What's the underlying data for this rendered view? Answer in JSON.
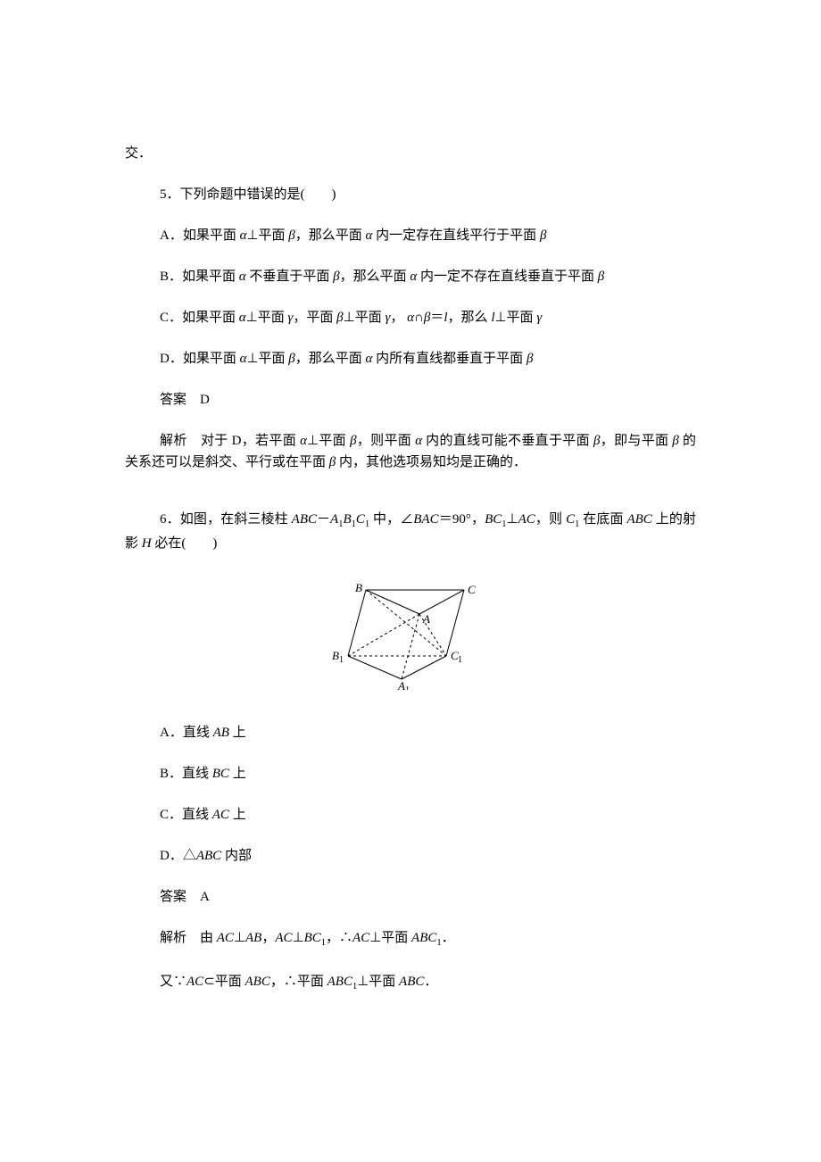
{
  "top_fragment": "交．",
  "q5": {
    "stem": "5．下列命题中错误的是(　　)",
    "optA_pre": "A．如果平面 ",
    "optA_mid1": "⊥平面 ",
    "optA_mid2": "，那么平面 ",
    "optA_mid3": " 内一定存在直线平行于平面 ",
    "optB_pre": "B．如果平面 ",
    "optB_mid1": " 不垂直于平面 ",
    "optB_mid2": "，那么平面 ",
    "optB_mid3": " 内一定不存在直线垂直于平面 ",
    "optC_pre": "C．如果平面 ",
    "optC_mid1": "⊥平面 ",
    "optC_mid2": "，平面 ",
    "optC_mid3": "⊥平面 ",
    "optC_mid4": "， ",
    "optC_mid5": "∩",
    "optC_mid6": "＝",
    "optC_mid7": "，那么 ",
    "optC_mid8": "⊥平面 ",
    "optD_pre": "D．如果平面 ",
    "optD_mid1": "⊥平面 ",
    "optD_mid2": "，那么平面 ",
    "optD_mid3": " 内所有直线都垂直于平面 ",
    "answer": "答案　D",
    "explain_pre": "解析　对于 D，若平面 ",
    "explain_mid1": "⊥平面 ",
    "explain_mid2": "，则平面 ",
    "explain_mid3": " 内的直线可能不垂直于平面 ",
    "explain_mid4": "，即与平面 ",
    "explain_mid5": " 的关系还可以是斜交、平行或在平面 ",
    "explain_mid6": " 内，其他选项易知均是正确的．"
  },
  "q6": {
    "stem_pre": "6．如图，在斜三棱柱 ",
    "stem_mid1": " 中，∠",
    "stem_mid2": "＝90°，",
    "stem_mid3": "⊥",
    "stem_mid4": "，则 ",
    "stem_mid5": " 在底面 ",
    "stem_mid6": " 上的射影 ",
    "stem_mid7": " 必在(　　)",
    "optA_pre": "A．直线 ",
    "optA_suf": " 上",
    "optB_pre": "B．直线 ",
    "optB_suf": " 上",
    "optC_pre": "C．直线 ",
    "optC_suf": " 上",
    "optD_pre": "D．△",
    "optD_suf": " 内部",
    "answer": "答案　A",
    "explain1_pre": "解析　由 ",
    "explain1_mid1": "⊥",
    "explain1_mid2": "，",
    "explain1_mid3": "⊥",
    "explain1_mid4": "，∴",
    "explain1_mid5": "⊥平面 ",
    "explain1_suf": "．",
    "explain2_pre": "又∵",
    "explain2_mid1": "⊂平面 ",
    "explain2_mid2": "，∴平面 ",
    "explain2_mid3": "⊥平面 ",
    "explain2_suf": "．"
  },
  "greek": {
    "alpha": "α",
    "beta": "β",
    "gamma": "γ"
  },
  "figure": {
    "B": "B",
    "C": "C",
    "A": "A",
    "B1": "B",
    "B1sub": "1",
    "A1": "A",
    "A1sub": "1",
    "C1": "C",
    "C1sub": "1",
    "stroke": "#000000",
    "fill": "none",
    "dash": "3,3",
    "font": "italic 13px 'Times New Roman', serif",
    "subfont": "10px 'Times New Roman', serif"
  }
}
